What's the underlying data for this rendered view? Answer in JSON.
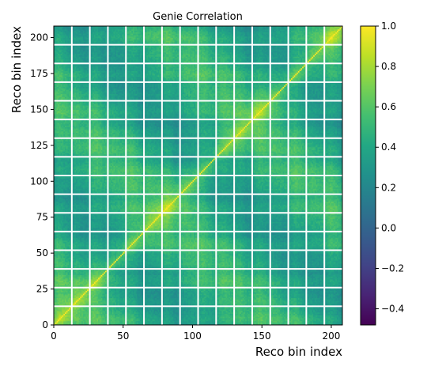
{
  "chart_data": {
    "type": "heatmap",
    "title": "Genie Correlation",
    "xlabel": "Reco bin index",
    "ylabel": "Reco bin index",
    "n_bins": 208,
    "xlim": [
      0,
      208
    ],
    "ylim": [
      0,
      208
    ],
    "x_ticks": [
      0,
      50,
      100,
      150,
      200
    ],
    "y_ticks": [
      0,
      25,
      50,
      75,
      100,
      125,
      150,
      175,
      200
    ],
    "block_boundaries": [
      13,
      26,
      39,
      52,
      65,
      78,
      91,
      104,
      117,
      130,
      143,
      156,
      169,
      182,
      195
    ],
    "colorbar": {
      "colormap": "viridis",
      "vmin": -0.48,
      "vmax": 1.0,
      "ticks": [
        "1.0",
        "0.8",
        "0.6",
        "0.4",
        "0.2",
        "0.0",
        "−0.2",
        "−0.4"
      ],
      "tick_values": [
        1.0,
        0.8,
        0.6,
        0.4,
        0.2,
        0.0,
        -0.2,
        -0.4
      ]
    },
    "diagonal_value": 1.0,
    "typical_offdiagonal_range": [
      0.3,
      0.85
    ],
    "colors": {
      "boundary_lines": "#ffffff",
      "axes": "#000000"
    }
  }
}
